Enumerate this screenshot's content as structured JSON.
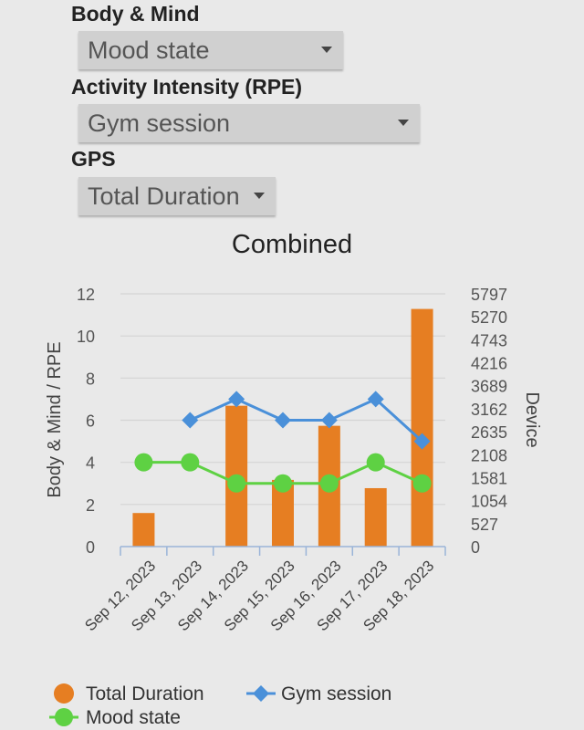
{
  "filters": [
    {
      "label": "Body & Mind",
      "value": "Mood state"
    },
    {
      "label": "Activity Intensity (RPE)",
      "value": "Gym session"
    },
    {
      "label": "GPS",
      "value": "Total Duration"
    }
  ],
  "colors": {
    "bar": "#e67e22",
    "gym": "#4a90d9",
    "mood": "#5ed143",
    "grid": "#d4d4d4",
    "axis": "#9ab4d8"
  },
  "chart_data": {
    "type": "bar",
    "title": "Combined",
    "categories": [
      "Sep 12, 2023",
      "Sep 13, 2023",
      "Sep 14, 2023",
      "Sep 15, 2023",
      "Sep 16, 2023",
      "Sep 17, 2023",
      "Sep 18, 2023"
    ],
    "ylabel": "Body & Mind / RPE",
    "y2label": "Device",
    "ylim": [
      0,
      12
    ],
    "yticks": [
      "0",
      "2",
      "4",
      "6",
      "8",
      "10",
      "12"
    ],
    "y2lim": [
      0,
      5797
    ],
    "y2ticks": [
      "0",
      "527",
      "1054",
      "1581",
      "2108",
      "2635",
      "3162",
      "3689",
      "4216",
      "4743",
      "5270",
      "5797"
    ],
    "series": [
      {
        "name": "Total Duration",
        "type": "bar",
        "axis": "right",
        "values": [
          770,
          null,
          3230,
          1530,
          2770,
          1340,
          5450
        ]
      },
      {
        "name": "Gym session",
        "type": "line",
        "marker": "diamond",
        "axis": "left",
        "values": [
          null,
          6,
          7,
          6,
          6,
          7,
          5
        ]
      },
      {
        "name": "Mood state",
        "type": "line",
        "marker": "circle",
        "axis": "left",
        "values": [
          4,
          4,
          3,
          3,
          3,
          4,
          3
        ]
      }
    ],
    "legend": "bottom"
  }
}
